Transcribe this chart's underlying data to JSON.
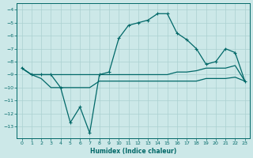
{
  "xlabel": "Humidex (Indice chaleur)",
  "bg_color": "#cce8e8",
  "grid_color": "#aad0d0",
  "line_color": "#006868",
  "xlim": [
    -0.5,
    23.5
  ],
  "ylim": [
    -13.9,
    -3.5
  ],
  "yticks": [
    -4,
    -5,
    -6,
    -7,
    -8,
    -9,
    -10,
    -11,
    -12,
    -13
  ],
  "xticks": [
    0,
    1,
    2,
    3,
    4,
    5,
    6,
    7,
    8,
    9,
    10,
    11,
    12,
    13,
    14,
    15,
    16,
    17,
    18,
    19,
    20,
    21,
    22,
    23
  ],
  "main_x": [
    0,
    1,
    2,
    3,
    4,
    5,
    6,
    7,
    8,
    9,
    10,
    11,
    12,
    13,
    14,
    15,
    16,
    17,
    18,
    19,
    20,
    21,
    22,
    23
  ],
  "main_y": [
    -8.5,
    -9.0,
    -9.0,
    -9.0,
    -10.0,
    -12.7,
    -11.5,
    -13.5,
    -9.0,
    -8.8,
    -6.2,
    -5.2,
    -5.0,
    -4.8,
    -4.3,
    -4.3,
    -5.8,
    -6.3,
    -7.0,
    -8.2,
    -8.0,
    -7.0,
    -7.3,
    -9.5
  ],
  "flat1_x": [
    0,
    1,
    2,
    3,
    4,
    5,
    6,
    7,
    8,
    9,
    10,
    11,
    12,
    13,
    14,
    15,
    16,
    17,
    18,
    19,
    20,
    21,
    22,
    23
  ],
  "flat1_y": [
    -8.5,
    -9.0,
    -9.0,
    -9.0,
    -9.0,
    -9.0,
    -9.0,
    -9.0,
    -9.0,
    -9.0,
    -9.0,
    -9.0,
    -9.0,
    -9.0,
    -9.0,
    -9.0,
    -8.8,
    -8.8,
    -8.7,
    -8.5,
    -8.5,
    -8.5,
    -8.3,
    -9.5
  ],
  "flat2_x": [
    0,
    1,
    2,
    3,
    4,
    5,
    6,
    7,
    8,
    9,
    10,
    11,
    12,
    13,
    14,
    15,
    16,
    17,
    18,
    19,
    20,
    21,
    22,
    23
  ],
  "flat2_y": [
    -8.5,
    -9.0,
    -9.3,
    -10.0,
    -10.0,
    -10.0,
    -10.0,
    -10.0,
    -9.5,
    -9.5,
    -9.5,
    -9.5,
    -9.5,
    -9.5,
    -9.5,
    -9.5,
    -9.5,
    -9.5,
    -9.5,
    -9.3,
    -9.3,
    -9.3,
    -9.2,
    -9.5
  ]
}
